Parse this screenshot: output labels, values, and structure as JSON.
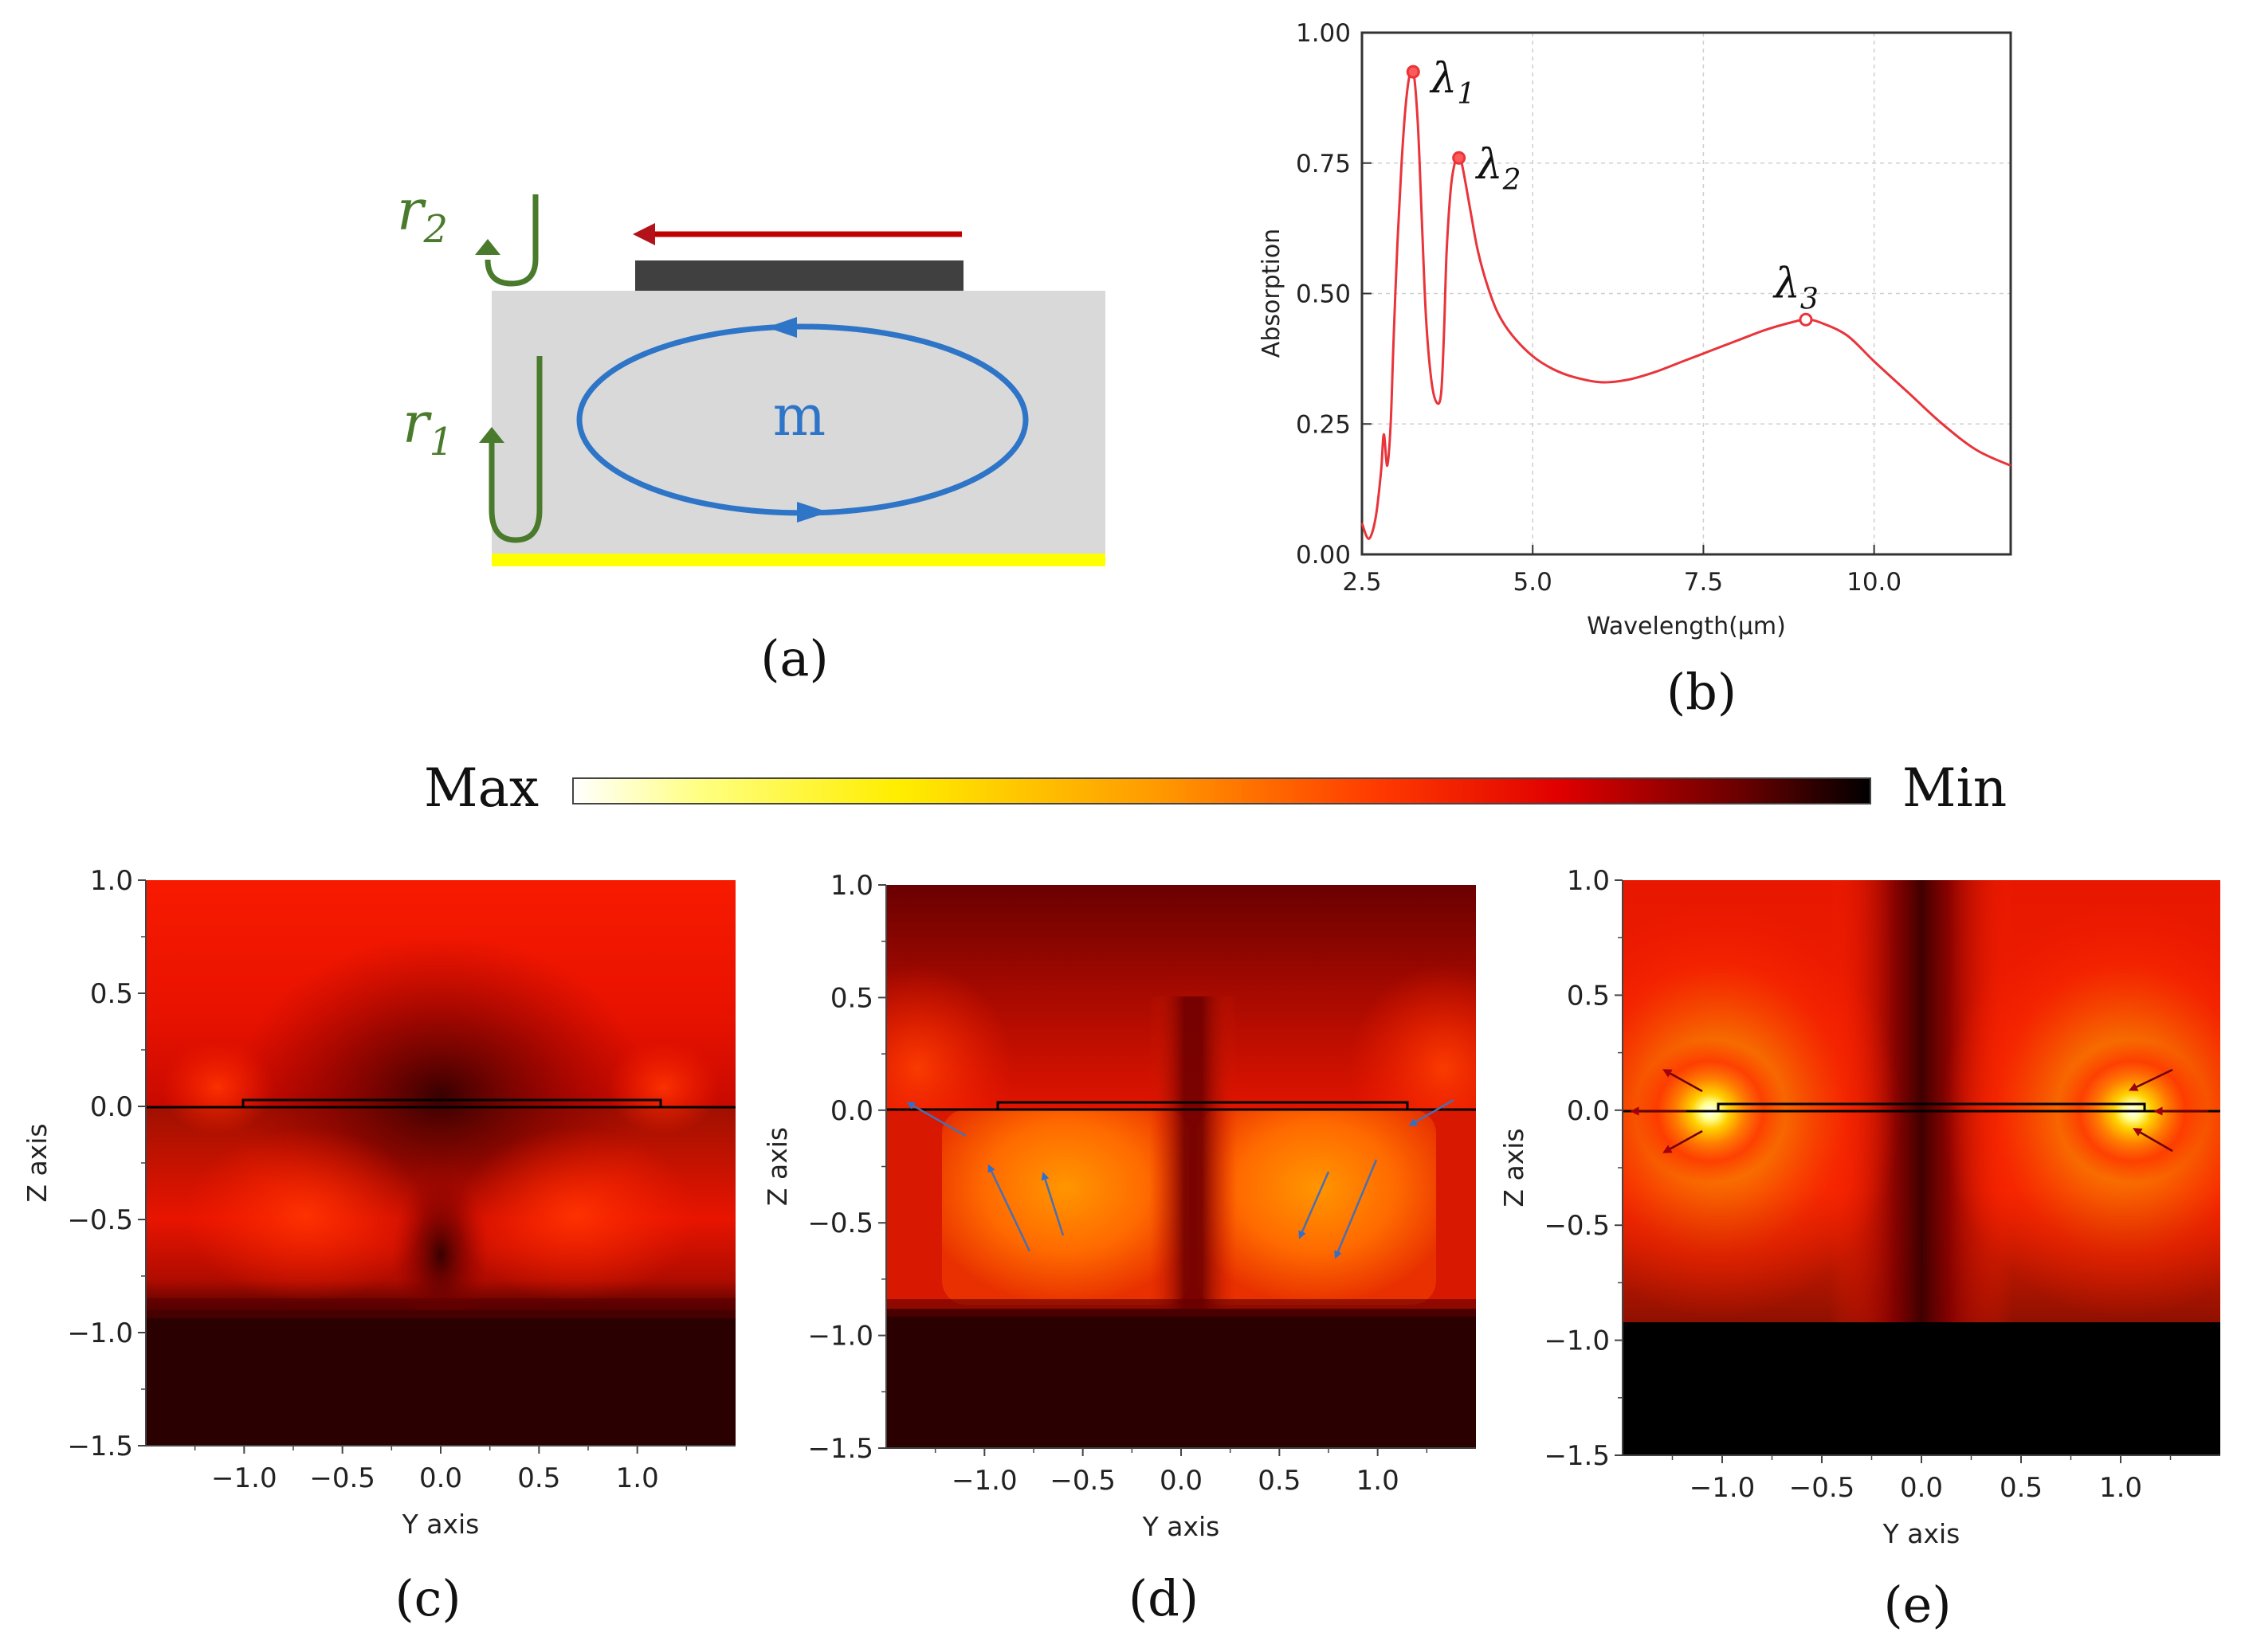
{
  "figure": {
    "caption_a": "(a)",
    "caption_b": "(b)",
    "caption_c": "(c)",
    "caption_d": "(d)",
    "caption_e": "(e)"
  },
  "schematic": {
    "r1": "r",
    "r1_sub": "1",
    "r2": "r",
    "r2_sub": "2",
    "mode": "m",
    "colors": {
      "dielectric": "#d9d9d9",
      "metal_strip": "#404040",
      "ground": "#ffff00",
      "loop": "#2e75c8",
      "reflection": "#4a7a2c",
      "arrow": "#c00000"
    }
  },
  "chart_data": [
    {
      "id": "b",
      "type": "line",
      "title": "",
      "xlabel": "Wavelength(μm)",
      "ylabel": "Absorption",
      "xlim": [
        2.5,
        12.0
      ],
      "ylim": [
        0.0,
        1.0
      ],
      "xticks": [
        2.5,
        5.0,
        7.5,
        10.0
      ],
      "xtick_labels": [
        "2.5",
        "5.0",
        "7.5",
        "10.0"
      ],
      "yticks": [
        0.0,
        0.25,
        0.5,
        0.75,
        1.0
      ],
      "ytick_labels": [
        "0.00",
        "0.25",
        "0.50",
        "0.75",
        "1.00"
      ],
      "grid": true,
      "line_color": "#e8343a",
      "series": [
        {
          "name": "Absorption",
          "x": [
            2.5,
            2.6,
            2.7,
            2.78,
            2.82,
            2.87,
            2.92,
            2.96,
            3.02,
            3.08,
            3.14,
            3.2,
            3.26,
            3.32,
            3.38,
            3.44,
            3.52,
            3.6,
            3.66,
            3.7,
            3.74,
            3.8,
            3.86,
            3.92,
            3.96,
            4.02,
            4.1,
            4.2,
            4.35,
            4.5,
            4.7,
            5.0,
            5.3,
            5.6,
            6.0,
            6.4,
            6.8,
            7.2,
            7.6,
            8.0,
            8.4,
            8.8,
            9.0,
            9.2,
            9.6,
            10.0,
            10.5,
            11.0,
            11.5,
            12.0
          ],
          "y": [
            0.06,
            0.03,
            0.07,
            0.16,
            0.23,
            0.17,
            0.25,
            0.4,
            0.6,
            0.75,
            0.86,
            0.92,
            0.92,
            0.82,
            0.63,
            0.45,
            0.33,
            0.29,
            0.31,
            0.42,
            0.58,
            0.7,
            0.75,
            0.76,
            0.75,
            0.71,
            0.65,
            0.58,
            0.51,
            0.46,
            0.42,
            0.38,
            0.355,
            0.34,
            0.33,
            0.335,
            0.35,
            0.37,
            0.39,
            0.41,
            0.43,
            0.445,
            0.45,
            0.445,
            0.42,
            0.37,
            0.31,
            0.25,
            0.2,
            0.17
          ]
        }
      ],
      "markers": [
        {
          "label": "λ",
          "sub": "1",
          "x": 3.25,
          "y": 0.925
        },
        {
          "label": "λ",
          "sub": "2",
          "x": 3.92,
          "y": 0.76
        },
        {
          "label": "λ",
          "sub": "3",
          "x": 9.0,
          "y": 0.45
        }
      ]
    },
    {
      "id": "c",
      "type": "heatmap",
      "xlabel": "Y axis",
      "ylabel": "Z axis",
      "xlim": [
        -1.5,
        1.5
      ],
      "ylim": [
        -1.5,
        1.0
      ],
      "xticks": [
        -1.0,
        -0.5,
        0.0,
        0.5,
        1.0
      ],
      "xtick_labels": [
        "−1.0",
        "−0.5",
        "0.0",
        "0.5",
        "1.0"
      ],
      "yticks": [
        1.0,
        0.5,
        0.0,
        -0.5,
        -1.0,
        -1.5
      ],
      "ytick_labels": [
        "1.0",
        "0.5",
        "0.0",
        "−0.5",
        "−1.0",
        "−1.5"
      ]
    },
    {
      "id": "d",
      "type": "heatmap",
      "xlabel": "Y axis",
      "ylabel": "Z axis",
      "xlim": [
        -1.5,
        1.5
      ],
      "ylim": [
        -1.5,
        1.0
      ],
      "xticks": [
        -1.0,
        -0.5,
        0.0,
        0.5,
        1.0
      ],
      "xtick_labels": [
        "−1.0",
        "−0.5",
        "0.0",
        "0.5",
        "1.0"
      ],
      "yticks": [
        1.0,
        0.5,
        0.0,
        -0.5,
        -1.0,
        -1.5
      ],
      "ytick_labels": [
        "1.0",
        "0.5",
        "0.0",
        "−0.5",
        "−1.0",
        "−1.5"
      ]
    },
    {
      "id": "e",
      "type": "heatmap",
      "xlabel": "Y axis",
      "ylabel": "Z axis",
      "xlim": [
        -1.5,
        1.5
      ],
      "ylim": [
        -1.5,
        1.0
      ],
      "xticks": [
        -1.0,
        -0.5,
        0.0,
        0.5,
        1.0
      ],
      "xtick_labels": [
        "−1.0",
        "−0.5",
        "0.0",
        "0.5",
        "1.0"
      ],
      "yticks": [
        1.0,
        0.5,
        0.0,
        -0.5,
        -1.0,
        -1.5
      ],
      "ytick_labels": [
        "1.0",
        "0.5",
        "0.0",
        "−0.5",
        "−1.0",
        "−1.5"
      ]
    }
  ],
  "colorbar": {
    "max_label": "Max",
    "min_label": "Min",
    "stops": [
      "#ffffff",
      "#ffff40",
      "#ffd000",
      "#ff8c00",
      "#ff3c00",
      "#d80000",
      "#700000",
      "#000000"
    ]
  }
}
